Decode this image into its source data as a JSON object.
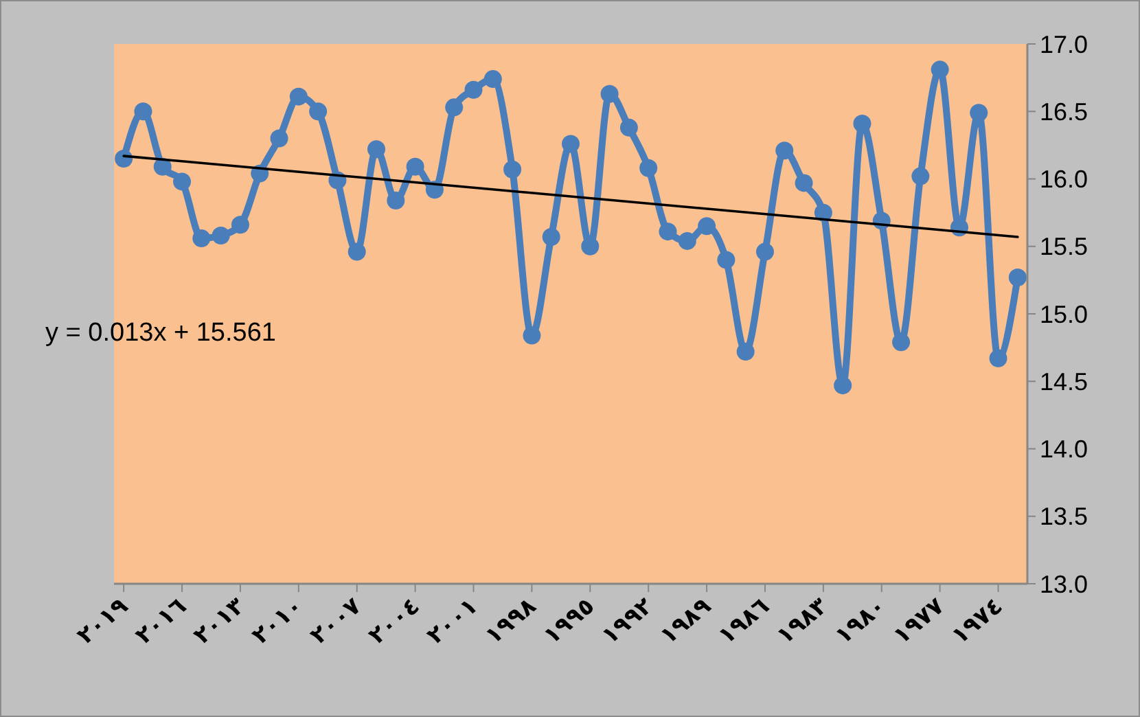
{
  "chart_data": {
    "type": "line",
    "x": [
      2019,
      2018,
      2017,
      2016,
      2015,
      2014,
      2013,
      2012,
      2011,
      2010,
      2009,
      2008,
      2007,
      2006,
      2005,
      2004,
      2003,
      2002,
      2001,
      2000,
      1999,
      1998,
      1997,
      1996,
      1995,
      1994,
      1993,
      1992,
      1991,
      1990,
      1989,
      1988,
      1987,
      1986,
      1985,
      1984,
      1983,
      1982,
      1981,
      1980,
      1979,
      1978,
      1977,
      1976,
      1975,
      1974,
      1973
    ],
    "series": [
      {
        "color": "#4a7ebb",
        "marker": "circle",
        "values": [
          16.15,
          16.5,
          16.09,
          15.98,
          15.56,
          15.58,
          15.66,
          16.04,
          16.3,
          16.61,
          16.5,
          15.99,
          15.46,
          16.22,
          15.84,
          16.09,
          15.92,
          16.53,
          16.66,
          16.74,
          16.07,
          14.84,
          15.57,
          16.26,
          15.5,
          16.63,
          16.38,
          16.08,
          15.61,
          15.54,
          15.65,
          15.4,
          14.72,
          15.46,
          16.21,
          15.97,
          15.75,
          14.47,
          16.41,
          15.69,
          14.79,
          16.02,
          16.81,
          15.64,
          16.49,
          14.67,
          15.27
        ]
      },
      {
        "type": "line",
        "color": "#000000",
        "marker": "none",
        "x": [
          2019,
          1973
        ],
        "values": [
          16.17,
          15.57
        ]
      }
    ],
    "xlim": [
      2019.5,
      1972.5
    ],
    "xticks": [
      {
        "value": 2019,
        "label": "٢٠١٩"
      },
      {
        "value": 2016,
        "label": "٢٠١٦"
      },
      {
        "value": 2013,
        "label": "٢٠١٣"
      },
      {
        "value": 2010,
        "label": "٢٠١٠"
      },
      {
        "value": 2007,
        "label": "٢٠٠٧"
      },
      {
        "value": 2004,
        "label": "٢٠٠٤"
      },
      {
        "value": 2001,
        "label": "٢٠٠١"
      },
      {
        "value": 1998,
        "label": "١٩٩٨"
      },
      {
        "value": 1995,
        "label": "١٩٩٥"
      },
      {
        "value": 1992,
        "label": "١٩٩٢"
      },
      {
        "value": 1989,
        "label": "١٩٨٩"
      },
      {
        "value": 1986,
        "label": "١٩٨٦"
      },
      {
        "value": 1983,
        "label": "١٩٨٣"
      },
      {
        "value": 1980,
        "label": "١٩٨٠"
      },
      {
        "value": 1977,
        "label": "١٩٧٧"
      },
      {
        "value": 1974,
        "label": "١٩٧٤"
      }
    ],
    "ylim": [
      13,
      17
    ],
    "yticks": [
      {
        "value": 13,
        "label": "13.0"
      },
      {
        "value": 13.5,
        "label": "13.5"
      },
      {
        "value": 14,
        "label": "14.0"
      },
      {
        "value": 14.5,
        "label": "14.5"
      },
      {
        "value": 15,
        "label": "15.0"
      },
      {
        "value": 15.5,
        "label": "15.5"
      },
      {
        "value": 16,
        "label": "16.0"
      },
      {
        "value": 16.5,
        "label": "16.5"
      },
      {
        "value": 17,
        "label": "17.0"
      }
    ],
    "annotations": [
      "y = 0.013x + 15.561"
    ],
    "grid": false
  }
}
